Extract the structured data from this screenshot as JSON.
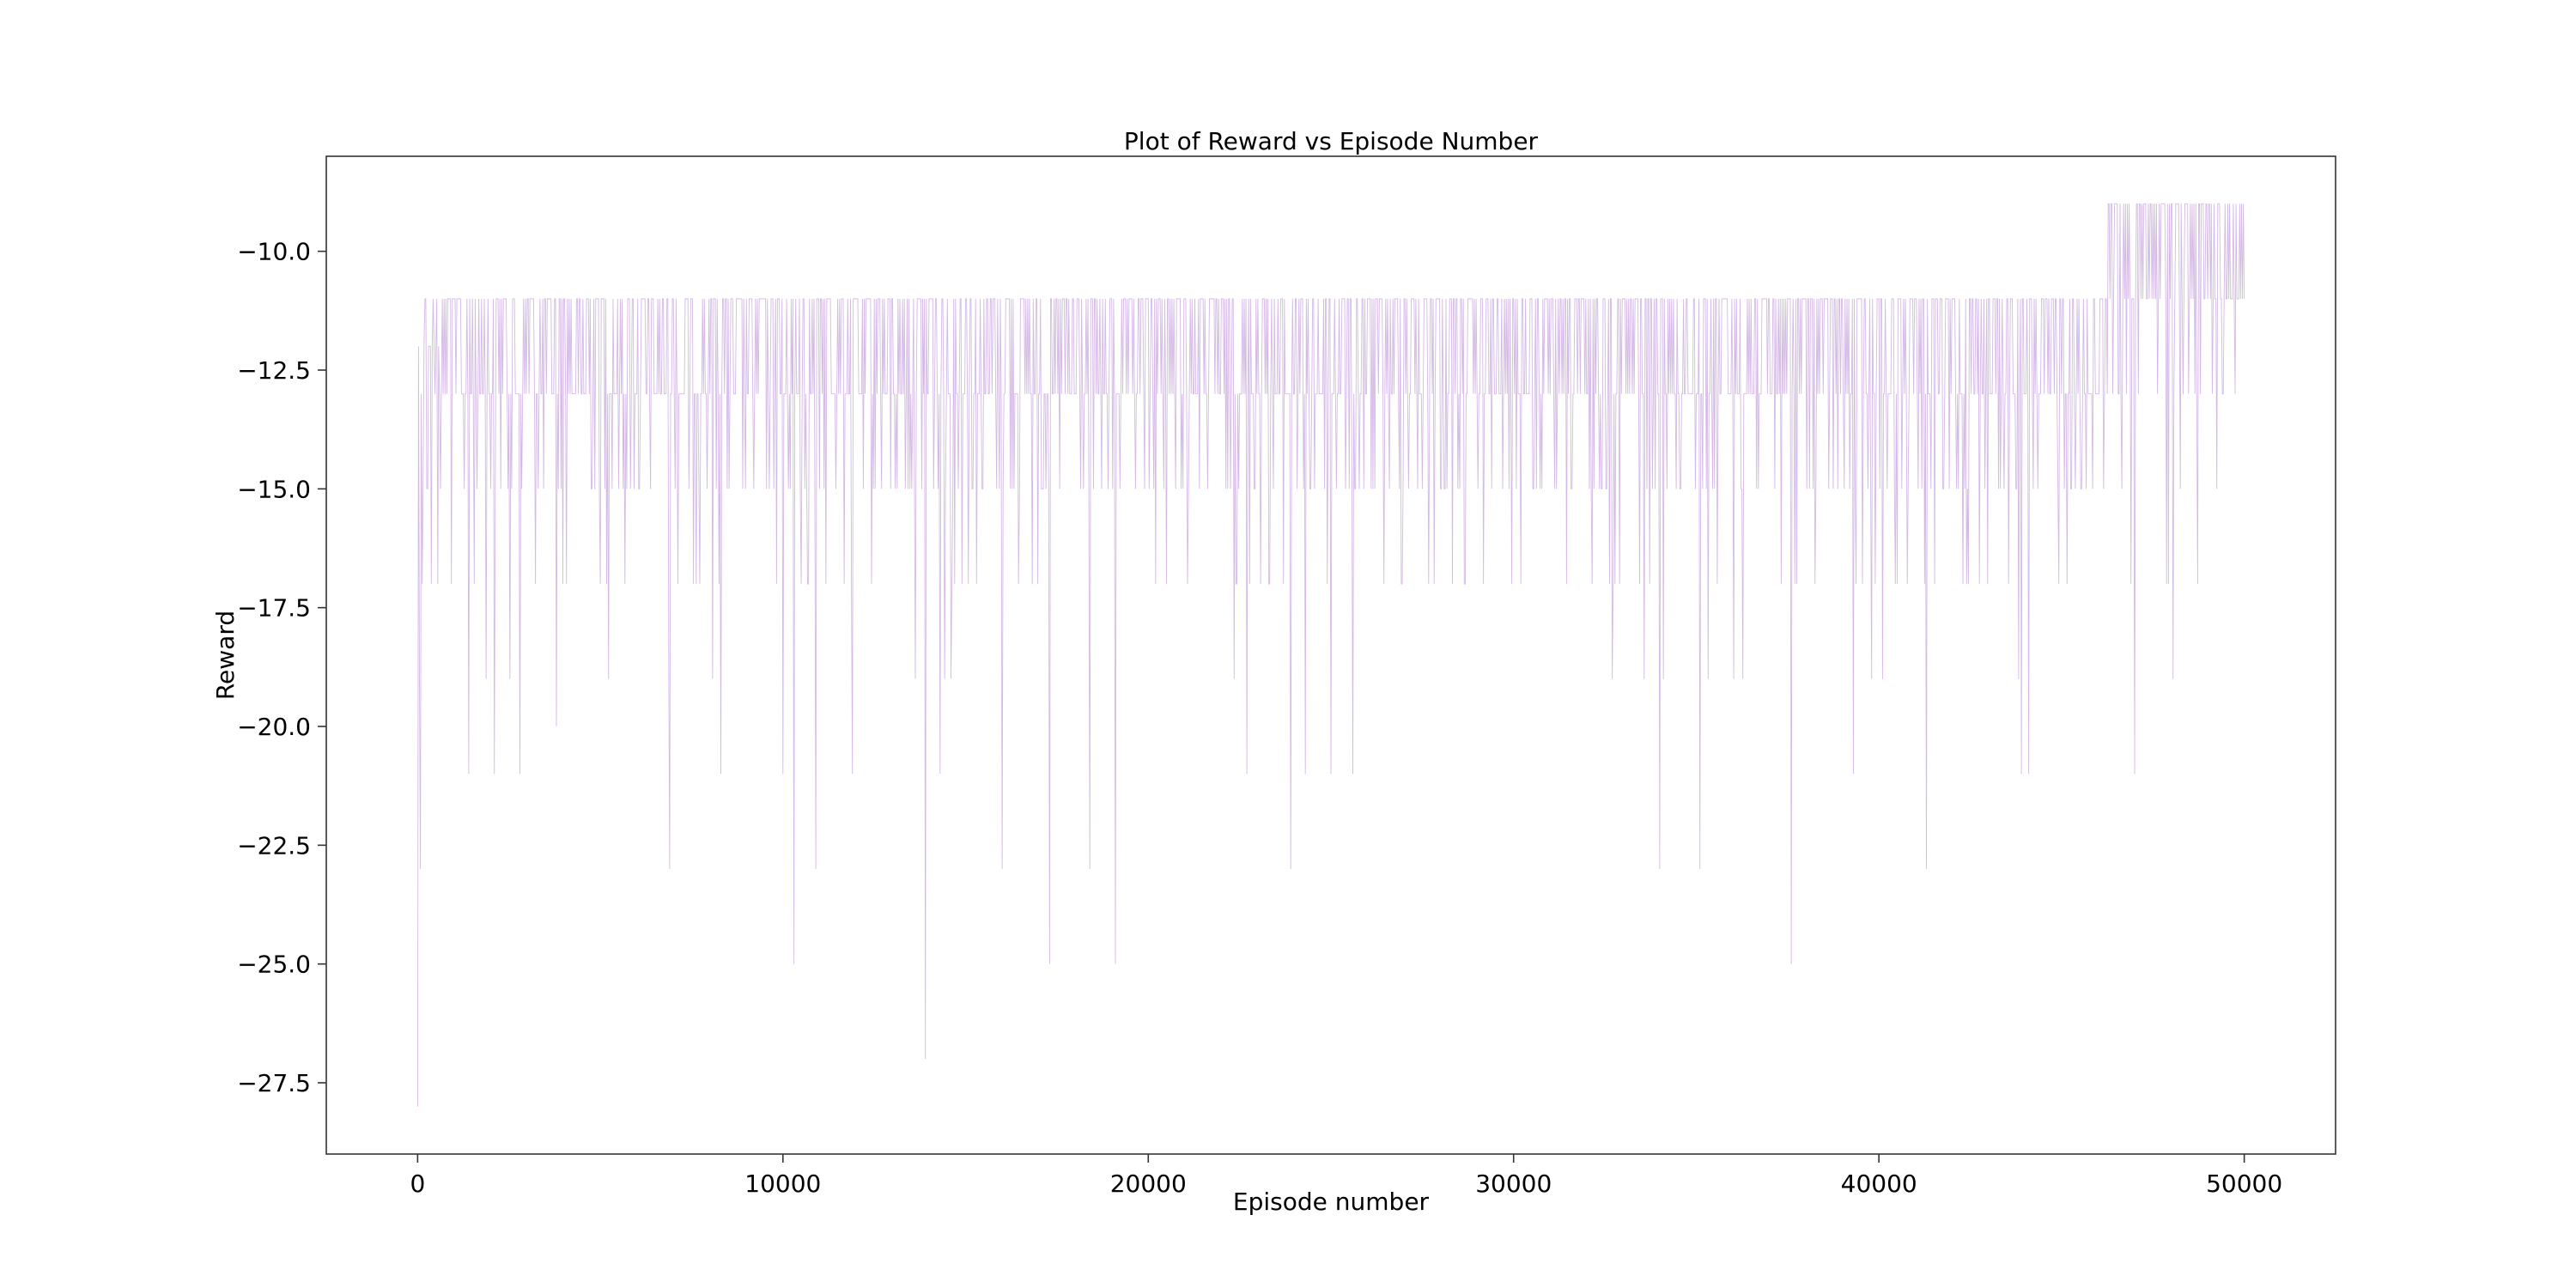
{
  "colors": {
    "series": "#b07fd0",
    "axes": "#333333",
    "background": "#ffffff"
  },
  "chart_data": {
    "type": "line",
    "title": "Plot of Reward vs Episode Number",
    "xlabel": "Episode number",
    "ylabel": "Reward",
    "xlim": [
      -2500,
      52500
    ],
    "ylim": [
      -29,
      -8
    ],
    "grid": false,
    "x_ticks": [
      0,
      10000,
      20000,
      30000,
      40000,
      50000
    ],
    "x_tick_labels": [
      "0",
      "10000",
      "20000",
      "30000",
      "40000",
      "50000"
    ],
    "y_ticks": [
      -10.0,
      -12.5,
      -15.0,
      -17.5,
      -20.0,
      -22.5,
      -25.0,
      -27.5
    ],
    "y_tick_labels": [
      "−10.0",
      "−12.5",
      "−15.0",
      "−17.5",
      "−20.0",
      "−22.5",
      "−25.0",
      "−27.5"
    ],
    "episodes": 50000,
    "series": [
      {
        "description_values": {
          "episode_0_to_46000": {
            "max": -11,
            "typical": [
              -11,
              -13
            ],
            "common_dips": [
              -15,
              -17,
              -19
            ]
          },
          "episode_46000_to_50000": {
            "max": -9,
            "typical": [
              -9,
              -11
            ],
            "common_dips": [
              -13,
              -15,
              -17,
              -19,
              -21
            ]
          }
        },
        "notable_minima": [
          {
            "x": 0,
            "y": -28
          },
          {
            "x": 80,
            "y": -23
          },
          {
            "x": 6900,
            "y": -23
          },
          {
            "x": 10300,
            "y": -25
          },
          {
            "x": 10900,
            "y": -23
          },
          {
            "x": 13900,
            "y": -27
          },
          {
            "x": 16000,
            "y": -23
          },
          {
            "x": 17300,
            "y": -25
          },
          {
            "x": 18400,
            "y": -23
          },
          {
            "x": 19100,
            "y": -25
          },
          {
            "x": 23900,
            "y": -23
          },
          {
            "x": 34000,
            "y": -23
          },
          {
            "x": 35100,
            "y": -23
          },
          {
            "x": 37600,
            "y": -25
          },
          {
            "x": 41300,
            "y": -23
          }
        ],
        "secondary_minima": [
          {
            "x": 1400,
            "y": -21
          },
          {
            "x": 2100,
            "y": -21
          },
          {
            "x": 2800,
            "y": -21
          },
          {
            "x": 3800,
            "y": -20
          },
          {
            "x": 8300,
            "y": -21
          },
          {
            "x": 10000,
            "y": -21
          },
          {
            "x": 11900,
            "y": -21
          },
          {
            "x": 14300,
            "y": -21
          },
          {
            "x": 22700,
            "y": -21
          },
          {
            "x": 24300,
            "y": -21
          },
          {
            "x": 25000,
            "y": -21
          },
          {
            "x": 25600,
            "y": -21
          },
          {
            "x": 39300,
            "y": -21
          },
          {
            "x": 43900,
            "y": -21
          },
          {
            "x": 44100,
            "y": -21
          },
          {
            "x": 47000,
            "y": -21
          }
        ]
      }
    ]
  }
}
